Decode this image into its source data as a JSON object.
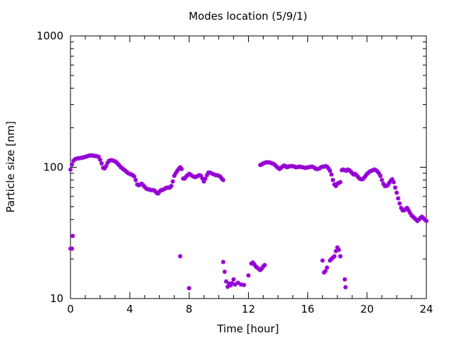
{
  "chart_data": {
    "type": "scatter",
    "title": "Modes location (5/9/1)",
    "xlabel": "Time [hour]",
    "ylabel": "Particle size [nm]",
    "xlim": [
      0,
      24
    ],
    "ylim": [
      10,
      1000
    ],
    "yscale": "log",
    "x_ticks": [
      0,
      4,
      8,
      12,
      16,
      20,
      24
    ],
    "x_tick_labels": [
      "0",
      "4",
      "8",
      "12",
      "16",
      "20",
      "24"
    ],
    "y_ticks": [
      10,
      100,
      1000
    ],
    "y_tick_labels": [
      "10",
      "100",
      "1000"
    ],
    "grid": false,
    "legend": "none",
    "marker_color": "#9400D3",
    "series": [
      {
        "values": [
          [
            0.0,
            96
          ],
          [
            0.1,
            105
          ],
          [
            0.2,
            112
          ],
          [
            0.3,
            115
          ],
          [
            0.4,
            116
          ],
          [
            0.5,
            117
          ],
          [
            0.6,
            117
          ],
          [
            0.7,
            118
          ],
          [
            0.8,
            118
          ],
          [
            0.9,
            119
          ],
          [
            1.0,
            120
          ],
          [
            1.1,
            121
          ],
          [
            1.2,
            122
          ],
          [
            1.3,
            123
          ],
          [
            1.4,
            123
          ],
          [
            1.5,
            123
          ],
          [
            1.6,
            122
          ],
          [
            1.7,
            122
          ],
          [
            1.8,
            121
          ],
          [
            1.9,
            120
          ],
          [
            2.0,
            114
          ],
          [
            2.1,
            107
          ],
          [
            2.2,
            99
          ],
          [
            2.3,
            98
          ],
          [
            2.4,
            102
          ],
          [
            2.5,
            108
          ],
          [
            2.6,
            112
          ],
          [
            2.7,
            113
          ],
          [
            2.8,
            113
          ],
          [
            2.9,
            112
          ],
          [
            3.0,
            111
          ],
          [
            3.1,
            109
          ],
          [
            3.2,
            106
          ],
          [
            3.3,
            103
          ],
          [
            3.4,
            100
          ],
          [
            3.5,
            98
          ],
          [
            3.6,
            96
          ],
          [
            3.7,
            94
          ],
          [
            3.8,
            92
          ],
          [
            3.9,
            90
          ],
          [
            4.0,
            89
          ],
          [
            4.1,
            88
          ],
          [
            4.2,
            87
          ],
          [
            4.3,
            85
          ],
          [
            4.4,
            80
          ],
          [
            4.5,
            74
          ],
          [
            4.6,
            73
          ],
          [
            4.7,
            74
          ],
          [
            4.8,
            75
          ],
          [
            4.9,
            73
          ],
          [
            5.0,
            71
          ],
          [
            5.1,
            69
          ],
          [
            5.2,
            68
          ],
          [
            5.3,
            68
          ],
          [
            5.4,
            67
          ],
          [
            5.5,
            67
          ],
          [
            5.6,
            67
          ],
          [
            5.7,
            66
          ],
          [
            5.8,
            64
          ],
          [
            5.9,
            63
          ],
          [
            6.0,
            65
          ],
          [
            6.1,
            67
          ],
          [
            6.2,
            67
          ],
          [
            6.3,
            68
          ],
          [
            6.4,
            69
          ],
          [
            6.5,
            70
          ],
          [
            6.6,
            70
          ],
          [
            6.7,
            70
          ],
          [
            6.8,
            72
          ],
          [
            6.9,
            78
          ],
          [
            7.0,
            86
          ],
          [
            7.1,
            90
          ],
          [
            7.2,
            94
          ],
          [
            7.3,
            97
          ],
          [
            7.4,
            100
          ],
          [
            7.5,
            97
          ],
          [
            7.6,
            82
          ],
          [
            7.7,
            82
          ],
          [
            7.8,
            85
          ],
          [
            7.9,
            87
          ],
          [
            8.0,
            89
          ],
          [
            8.1,
            88
          ],
          [
            8.2,
            86
          ],
          [
            8.3,
            85
          ],
          [
            8.4,
            84
          ],
          [
            8.5,
            85
          ],
          [
            8.6,
            86
          ],
          [
            8.7,
            87
          ],
          [
            8.8,
            86
          ],
          [
            8.9,
            82
          ],
          [
            9.0,
            78
          ],
          [
            9.1,
            82
          ],
          [
            9.2,
            87
          ],
          [
            9.3,
            91
          ],
          [
            9.4,
            91
          ],
          [
            9.5,
            90
          ],
          [
            9.6,
            89
          ],
          [
            9.7,
            88
          ],
          [
            9.8,
            87
          ],
          [
            9.9,
            87
          ],
          [
            10.0,
            86
          ],
          [
            10.1,
            85
          ],
          [
            10.2,
            82
          ],
          [
            10.3,
            80
          ],
          [
            12.8,
            104
          ],
          [
            12.9,
            105
          ],
          [
            13.0,
            107
          ],
          [
            13.1,
            108
          ],
          [
            13.2,
            109
          ],
          [
            13.3,
            109
          ],
          [
            13.4,
            109
          ],
          [
            13.5,
            108
          ],
          [
            13.6,
            107
          ],
          [
            13.7,
            106
          ],
          [
            13.8,
            104
          ],
          [
            13.9,
            101
          ],
          [
            14.0,
            99
          ],
          [
            14.1,
            97
          ],
          [
            14.2,
            99
          ],
          [
            14.3,
            101
          ],
          [
            14.4,
            103
          ],
          [
            14.5,
            102
          ],
          [
            14.6,
            100
          ],
          [
            14.7,
            101
          ],
          [
            14.8,
            102
          ],
          [
            14.9,
            102
          ],
          [
            15.0,
            102
          ],
          [
            15.1,
            101
          ],
          [
            15.2,
            100
          ],
          [
            15.3,
            100
          ],
          [
            15.4,
            101
          ],
          [
            15.5,
            101
          ],
          [
            15.6,
            100
          ],
          [
            15.7,
            100
          ],
          [
            15.8,
            99
          ],
          [
            15.9,
            99
          ],
          [
            16.0,
            100
          ],
          [
            16.1,
            100
          ],
          [
            16.2,
            101
          ],
          [
            16.3,
            101
          ],
          [
            16.4,
            100
          ],
          [
            16.5,
            98
          ],
          [
            16.6,
            97
          ],
          [
            16.7,
            97
          ],
          [
            16.8,
            98
          ],
          [
            16.9,
            100
          ],
          [
            17.0,
            101
          ],
          [
            17.1,
            101
          ],
          [
            17.2,
            102
          ],
          [
            17.3,
            101
          ],
          [
            17.4,
            98
          ],
          [
            17.5,
            94
          ],
          [
            17.6,
            88
          ],
          [
            17.7,
            80
          ],
          [
            17.8,
            74
          ],
          [
            17.9,
            72
          ],
          [
            18.0,
            75
          ],
          [
            18.1,
            76
          ],
          [
            18.2,
            77
          ],
          [
            18.3,
            95
          ],
          [
            18.4,
            96
          ],
          [
            18.5,
            95
          ],
          [
            18.6,
            94
          ],
          [
            18.7,
            96
          ],
          [
            18.8,
            95
          ],
          [
            18.9,
            93
          ],
          [
            19.0,
            90
          ],
          [
            19.1,
            88
          ],
          [
            19.2,
            89
          ],
          [
            19.3,
            87
          ],
          [
            19.4,
            84
          ],
          [
            19.5,
            82
          ],
          [
            19.6,
            81
          ],
          [
            19.7,
            81
          ],
          [
            19.8,
            83
          ],
          [
            19.9,
            86
          ],
          [
            20.0,
            89
          ],
          [
            20.1,
            91
          ],
          [
            20.2,
            93
          ],
          [
            20.3,
            94
          ],
          [
            20.4,
            95
          ],
          [
            20.5,
            96
          ],
          [
            20.6,
            95
          ],
          [
            20.7,
            93
          ],
          [
            20.8,
            90
          ],
          [
            20.9,
            86
          ],
          [
            21.0,
            80
          ],
          [
            21.1,
            75
          ],
          [
            21.2,
            72
          ],
          [
            21.3,
            72
          ],
          [
            21.4,
            73
          ],
          [
            21.5,
            76
          ],
          [
            21.6,
            79
          ],
          [
            21.7,
            81
          ],
          [
            21.8,
            77
          ],
          [
            21.9,
            70
          ],
          [
            22.0,
            64
          ],
          [
            22.1,
            58
          ],
          [
            22.2,
            53
          ],
          [
            22.3,
            49
          ],
          [
            22.4,
            47
          ],
          [
            22.5,
            47
          ],
          [
            22.6,
            48
          ],
          [
            22.7,
            49
          ],
          [
            22.8,
            47
          ],
          [
            22.9,
            45
          ],
          [
            23.0,
            43
          ],
          [
            23.1,
            42
          ],
          [
            23.2,
            41
          ],
          [
            23.3,
            40
          ],
          [
            23.4,
            39
          ],
          [
            23.5,
            40
          ],
          [
            23.6,
            41
          ],
          [
            23.7,
            42
          ],
          [
            23.8,
            41
          ],
          [
            23.9,
            40
          ],
          [
            24.0,
            39
          ],
          [
            0.0,
            24
          ],
          [
            0.1,
            24
          ],
          [
            0.15,
            30
          ],
          [
            7.4,
            21
          ],
          [
            8.0,
            12
          ],
          [
            10.3,
            19
          ],
          [
            10.4,
            16
          ],
          [
            10.5,
            13.5
          ],
          [
            10.6,
            12.3
          ],
          [
            10.7,
            13
          ],
          [
            10.8,
            12.6
          ],
          [
            10.9,
            13.1
          ],
          [
            11.0,
            14
          ],
          [
            11.1,
            12.8
          ],
          [
            11.3,
            13.2
          ],
          [
            11.5,
            12.8
          ],
          [
            11.7,
            12.7
          ],
          [
            12.0,
            15
          ],
          [
            12.2,
            18.5
          ],
          [
            12.3,
            18.8
          ],
          [
            12.4,
            18.2
          ],
          [
            12.5,
            17.5
          ],
          [
            12.6,
            17.2
          ],
          [
            12.7,
            16.8
          ],
          [
            12.8,
            16.5
          ],
          [
            12.9,
            16.9
          ],
          [
            13.0,
            17.6
          ],
          [
            13.1,
            18
          ],
          [
            17.0,
            19.5
          ],
          [
            17.1,
            15.8
          ],
          [
            17.2,
            16.2
          ],
          [
            17.3,
            17.2
          ],
          [
            17.5,
            19.5
          ],
          [
            17.6,
            20
          ],
          [
            17.7,
            20.5
          ],
          [
            17.8,
            21
          ],
          [
            17.9,
            23
          ],
          [
            18.0,
            24.5
          ],
          [
            18.1,
            23.5
          ],
          [
            18.2,
            21
          ],
          [
            18.5,
            14
          ],
          [
            18.55,
            12.2
          ]
        ]
      }
    ]
  }
}
